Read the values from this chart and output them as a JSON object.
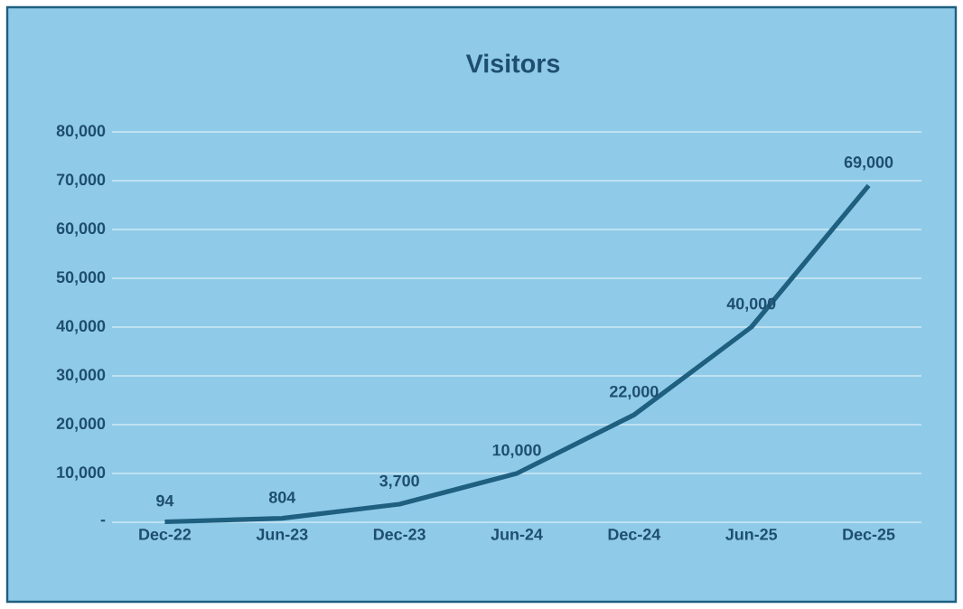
{
  "chart_data": {
    "type": "line",
    "title": "Visitors",
    "categories": [
      "Dec-22",
      "Jun-23",
      "Dec-23",
      "Jun-24",
      "Dec-24",
      "Jun-25",
      "Dec-25"
    ],
    "values": [
      94,
      804,
      3700,
      10000,
      22000,
      40000,
      69000
    ],
    "value_labels": [
      "94",
      "804",
      "3,700",
      "10,000",
      "22,000",
      "40,000",
      "69,000"
    ],
    "color": "#1f5f80",
    "ylim": [
      0,
      80000
    ],
    "yticks": [
      {
        "value": 0,
        "label": "-"
      },
      {
        "value": 10000,
        "label": "10,000"
      },
      {
        "value": 20000,
        "label": "20,000"
      },
      {
        "value": 30000,
        "label": "30,000"
      },
      {
        "value": 40000,
        "label": "40,000"
      },
      {
        "value": 50000,
        "label": "50,000"
      },
      {
        "value": 60000,
        "label": "60,000"
      },
      {
        "value": 70000,
        "label": "70,000"
      },
      {
        "value": 80000,
        "label": "80,000"
      }
    ],
    "grid": "y",
    "marker": "none"
  }
}
